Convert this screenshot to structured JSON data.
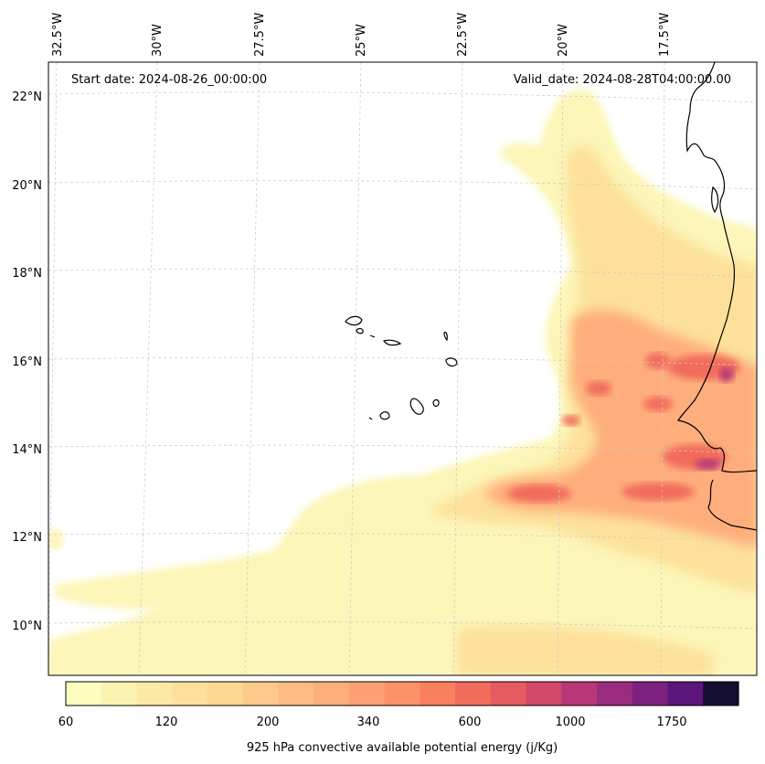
{
  "header": {
    "start_date": "Start date: 2024-08-26_00:00:00",
    "valid_date": "Valid_date: 2024-08-28T04:00:00.00"
  },
  "map": {
    "lon_labels": [
      "32.5°W",
      "30°W",
      "27.5°W",
      "25°W",
      "22.5°W",
      "20°W",
      "17.5°W"
    ],
    "lat_labels": [
      "22°N",
      "20°N",
      "18°N",
      "16°N",
      "14°N",
      "12°N",
      "10°N"
    ],
    "coastline_color": "#000000",
    "gridline_color": "#cccccc"
  },
  "colorbar": {
    "tick_labels": [
      "60",
      "120",
      "200",
      "340",
      "600",
      "1000",
      "1750"
    ],
    "label": "925 hPa convective available potential energy (j/Kg)",
    "colors": [
      "#fcfdbf",
      "#fcf3b2",
      "#fde9a6",
      "#fde19b",
      "#fed791",
      "#fec98a",
      "#febb82",
      "#feae7b",
      "#fea074",
      "#fd9269",
      "#f97f5e",
      "#f26c5c",
      "#e65a60",
      "#d14868",
      "#b73779",
      "#9a2d7f",
      "#7d237f",
      "#5b157b",
      "#120d31"
    ]
  }
}
